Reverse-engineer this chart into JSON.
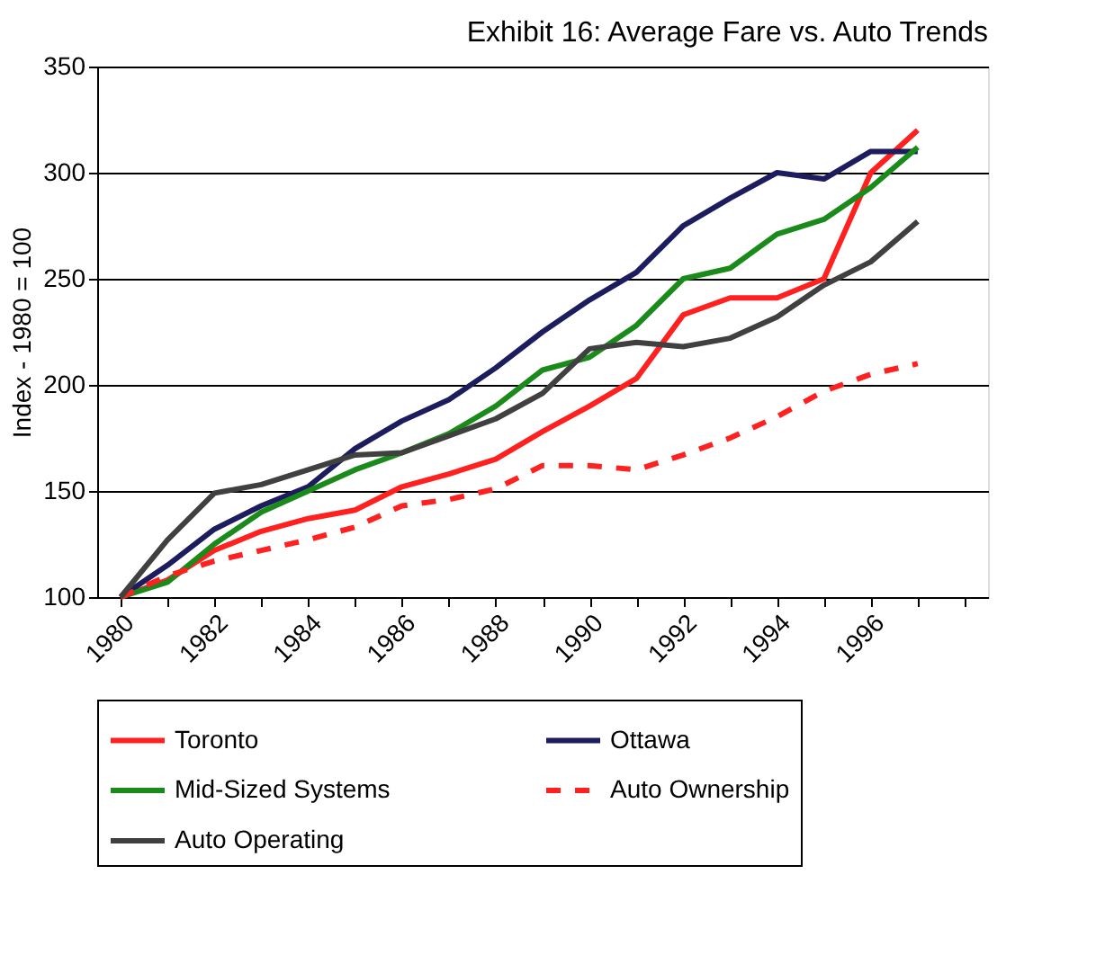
{
  "chart_data": {
    "type": "line",
    "title": "Exhibit 16: Average Fare vs. Auto Trends",
    "ylabel": "Index - 1980 = 100",
    "categories": [
      "1980",
      null,
      "1982",
      null,
      "1984",
      null,
      "1986",
      null,
      "1988",
      null,
      "1990",
      null,
      "1992",
      null,
      "1994",
      null,
      "1996",
      null,
      null
    ],
    "ylim": [
      100,
      350
    ],
    "yticks": [
      100,
      150,
      200,
      250,
      300,
      350
    ],
    "grid": "y",
    "legend": "bottom",
    "marker": "none",
    "series": [
      {
        "name": "Toronto",
        "color": "#ff2020",
        "line_style": "solid",
        "values": [
          100,
          108,
          122,
          131,
          137,
          141,
          152,
          158,
          165,
          178,
          190,
          203,
          233,
          241,
          241,
          250,
          300,
          320,
          null
        ]
      },
      {
        "name": "Ottawa",
        "color": "#1c1c5e",
        "line_style": "solid",
        "values": [
          100,
          115,
          132,
          143,
          152,
          170,
          183,
          193,
          208,
          225,
          240,
          253,
          275,
          288,
          300,
          297,
          310,
          310,
          null
        ]
      },
      {
        "name": "Mid-Sized Systems",
        "color": "#1a8a1a",
        "line_style": "solid",
        "values": [
          100,
          107,
          125,
          140,
          150,
          160,
          168,
          177,
          190,
          207,
          213,
          228,
          250,
          255,
          271,
          278,
          293,
          312,
          null
        ]
      },
      {
        "name": "Auto Ownership",
        "color": "#ff2020",
        "line_style": "dashed",
        "values": [
          100,
          110,
          117,
          122,
          127,
          133,
          143,
          146,
          151,
          162,
          162,
          160,
          167,
          175,
          185,
          197,
          205,
          210,
          null
        ]
      },
      {
        "name": "Auto Operating",
        "color": "#404040",
        "line_style": "solid",
        "values": [
          100,
          127,
          149,
          153,
          160,
          167,
          168,
          176,
          184,
          196,
          217,
          220,
          218,
          222,
          232,
          247,
          258,
          277,
          null
        ]
      }
    ]
  }
}
